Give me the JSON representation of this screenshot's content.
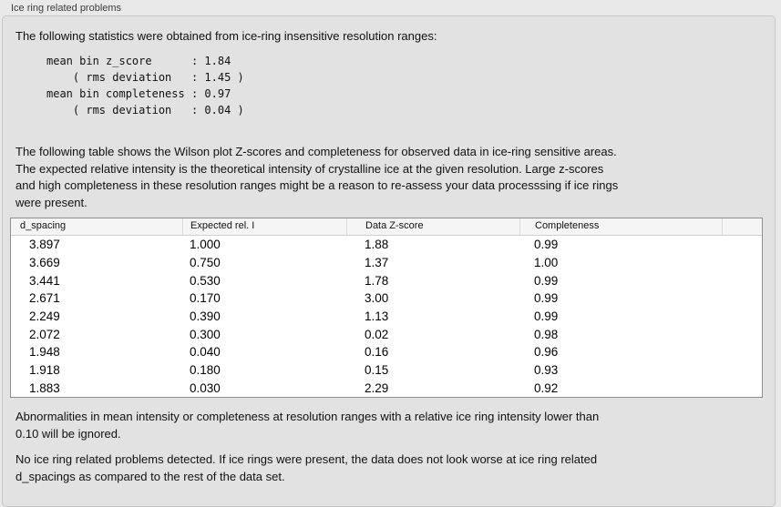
{
  "window": {
    "title": "Ice ring related problems"
  },
  "panel": {
    "intro": "The following statistics were obtained from ice-ring insensitive resolution ranges:",
    "stats_block": "mean bin z_score      : 1.84\n    ( rms deviation   : 1.45 )\nmean bin completeness : 0.97\n    ( rms deviation   : 0.04 )",
    "table_description": "The following table shows the Wilson plot Z-scores and completeness for observed data in ice-ring sensitive areas.\nThe expected relative intensity is the theoretical intensity of crystalline ice at the given resolution. Large z-scores\nand high completeness in these resolution ranges might be a reason to re-assess your data processsing if ice rings\nwere present.",
    "ignore_note": "Abnormalities in mean intensity or completeness at resolution ranges with a relative ice ring intensity lower than\n0.10 will be ignored.",
    "conclusion": "No ice ring related problems detected. If ice rings were present, the data does not look worse at ice ring related\nd_spacings as compared to the rest of the data set."
  },
  "table": {
    "columns": [
      "d_spacing",
      "Expected rel. I",
      "Data Z-score",
      "Completeness",
      ""
    ],
    "rows": [
      [
        "3.897",
        "1.000",
        "1.88",
        "0.99"
      ],
      [
        "3.669",
        "0.750",
        "1.37",
        "1.00"
      ],
      [
        "3.441",
        "0.530",
        "1.78",
        "0.99"
      ],
      [
        "2.671",
        "0.170",
        "3.00",
        "0.99"
      ],
      [
        "2.249",
        "0.390",
        "1.13",
        "0.99"
      ],
      [
        "2.072",
        "0.300",
        "0.02",
        "0.98"
      ],
      [
        "1.948",
        "0.040",
        "0.16",
        "0.96"
      ],
      [
        "1.918",
        "0.180",
        "0.15",
        "0.93"
      ],
      [
        "1.883",
        "0.030",
        "2.29",
        "0.92"
      ]
    ]
  },
  "colors": {
    "page_bg": "#e9e9e9",
    "panel_bg": "#e2e2e2",
    "panel_border": "#c6c6c6",
    "table_bg": "#ffffff",
    "table_border": "#8f8f8f",
    "header_bg": "#f5f5f5",
    "text": "#111111"
  }
}
